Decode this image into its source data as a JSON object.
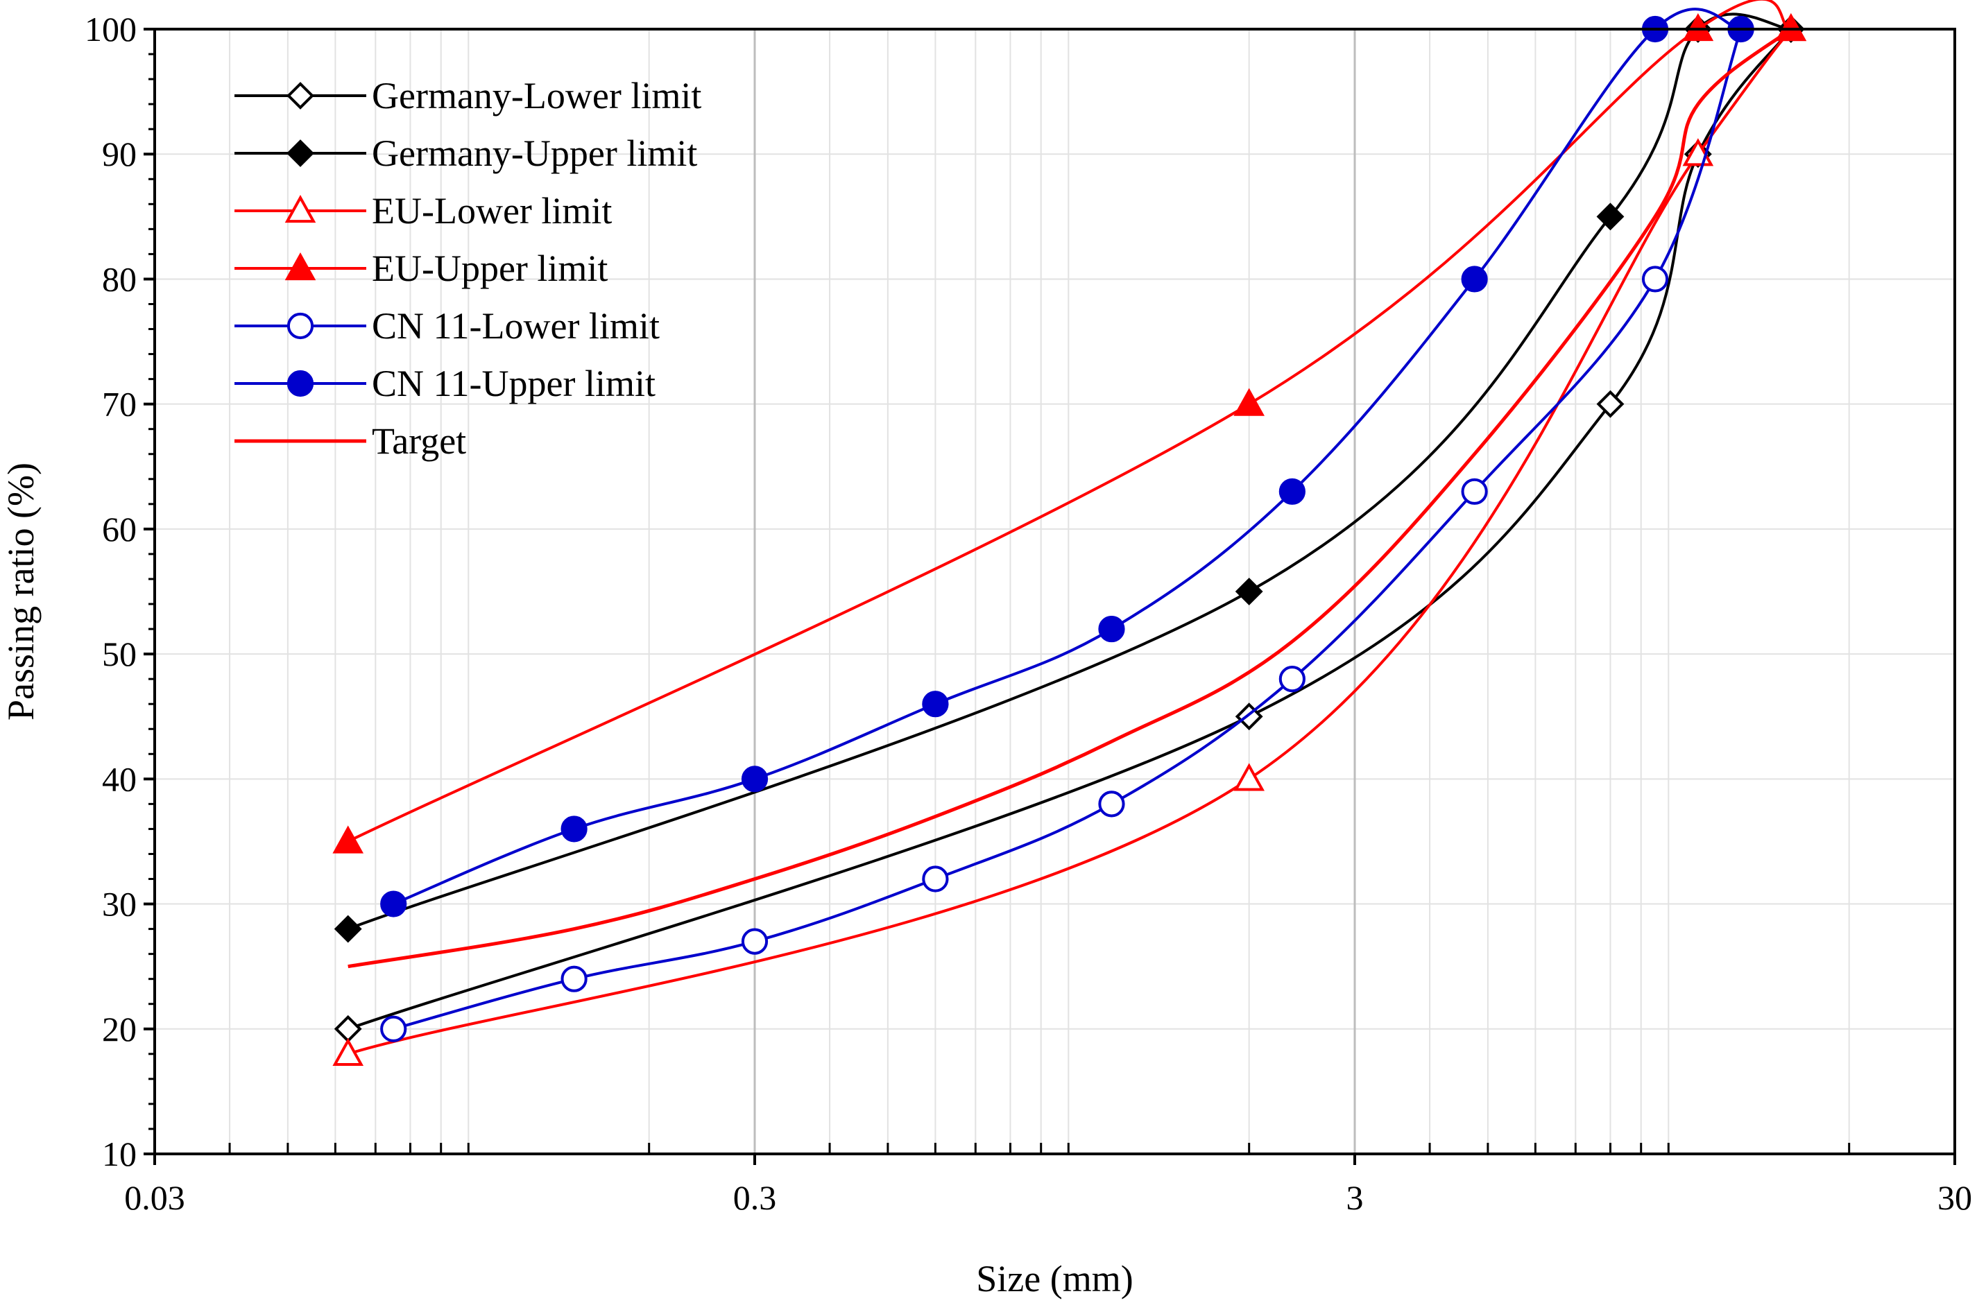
{
  "chart_data": {
    "type": "line",
    "title": "",
    "xlabel": "Size (mm)",
    "ylabel": "Passing ratio (%)",
    "xscale": "log",
    "xlim": [
      0.03,
      30
    ],
    "ylim": [
      10,
      100
    ],
    "xticks": [
      {
        "value": 0.03,
        "label": "0.03"
      },
      {
        "value": 0.3,
        "label": "0.3"
      },
      {
        "value": 3,
        "label": "3"
      },
      {
        "value": 30,
        "label": "30"
      }
    ],
    "yticks": [
      {
        "value": 10,
        "label": "10"
      },
      {
        "value": 20,
        "label": "20"
      },
      {
        "value": 30,
        "label": "30"
      },
      {
        "value": 40,
        "label": "40"
      },
      {
        "value": 50,
        "label": "50"
      },
      {
        "value": 60,
        "label": "60"
      },
      {
        "value": 70,
        "label": "70"
      },
      {
        "value": 80,
        "label": "80"
      },
      {
        "value": 90,
        "label": "90"
      },
      {
        "value": 100,
        "label": "100"
      }
    ],
    "grid": true,
    "legend_position": "top-left",
    "series": [
      {
        "name": "Germany-Lower limit",
        "color": "#000000",
        "marker": "diamond-open",
        "x": [
          0.063,
          2.0,
          8.0,
          11.2,
          16.0
        ],
        "y": [
          20,
          45,
          70,
          90,
          100
        ]
      },
      {
        "name": "Germany-Upper limit",
        "color": "#000000",
        "marker": "diamond-filled",
        "x": [
          0.063,
          2.0,
          8.0,
          11.2,
          16.0
        ],
        "y": [
          28,
          55,
          85,
          100,
          100
        ]
      },
      {
        "name": "EU-Lower limit",
        "color": "#ff0000",
        "marker": "triangle-open",
        "x": [
          0.063,
          2.0,
          11.2,
          16.0
        ],
        "y": [
          18,
          40,
          90,
          100
        ]
      },
      {
        "name": "EU-Upper limit",
        "color": "#ff0000",
        "marker": "triangle-filled",
        "x": [
          0.063,
          2.0,
          11.2,
          16.0
        ],
        "y": [
          35,
          70,
          100,
          100
        ]
      },
      {
        "name": "CN 11-Lower limit",
        "color": "#0000cc",
        "marker": "circle-open",
        "x": [
          0.075,
          0.15,
          0.3,
          0.6,
          1.18,
          2.36,
          4.75,
          9.5,
          13.2
        ],
        "y": [
          20,
          24,
          27,
          32,
          38,
          48,
          63,
          80,
          100
        ]
      },
      {
        "name": "CN 11-Upper limit",
        "color": "#0000cc",
        "marker": "circle-filled",
        "x": [
          0.075,
          0.15,
          0.3,
          0.6,
          1.18,
          2.36,
          4.75,
          9.5,
          13.2
        ],
        "y": [
          30,
          36,
          40,
          46,
          52,
          63,
          80,
          100,
          100
        ]
      },
      {
        "name": "Target",
        "color": "#ff0000",
        "marker": "none",
        "width": 5,
        "x": [
          0.063,
          0.15,
          0.3,
          0.6,
          1.18,
          2.36,
          4.75,
          9.5,
          11.2,
          16.0
        ],
        "y": [
          25,
          28,
          32,
          37,
          43,
          51,
          66,
          85,
          94,
          100
        ]
      }
    ]
  }
}
